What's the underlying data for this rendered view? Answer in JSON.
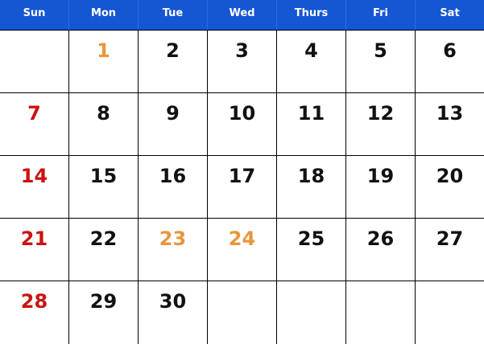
{
  "header": {
    "days": [
      "Sun",
      "Mon",
      "Tue",
      "Wed",
      "Thurs",
      "Fri",
      "Sat"
    ]
  },
  "colors": {
    "header_bg": "#1556d3",
    "sunday": "#cc1111",
    "holiday": "#e8963c",
    "default": "#111111"
  },
  "weeks": [
    [
      {
        "day": "",
        "type": "empty"
      },
      {
        "day": "1",
        "type": "holiday"
      },
      {
        "day": "2",
        "type": "default"
      },
      {
        "day": "3",
        "type": "default"
      },
      {
        "day": "4",
        "type": "default"
      },
      {
        "day": "5",
        "type": "default"
      },
      {
        "day": "6",
        "type": "default"
      }
    ],
    [
      {
        "day": "7",
        "type": "sunday"
      },
      {
        "day": "8",
        "type": "default"
      },
      {
        "day": "9",
        "type": "default"
      },
      {
        "day": "10",
        "type": "default"
      },
      {
        "day": "11",
        "type": "default"
      },
      {
        "day": "12",
        "type": "default"
      },
      {
        "day": "13",
        "type": "default"
      }
    ],
    [
      {
        "day": "14",
        "type": "sunday"
      },
      {
        "day": "15",
        "type": "default"
      },
      {
        "day": "16",
        "type": "default"
      },
      {
        "day": "17",
        "type": "default"
      },
      {
        "day": "18",
        "type": "default"
      },
      {
        "day": "19",
        "type": "default"
      },
      {
        "day": "20",
        "type": "default"
      }
    ],
    [
      {
        "day": "21",
        "type": "sunday"
      },
      {
        "day": "22",
        "type": "default"
      },
      {
        "day": "23",
        "type": "holiday"
      },
      {
        "day": "24",
        "type": "holiday"
      },
      {
        "day": "25",
        "type": "default"
      },
      {
        "day": "26",
        "type": "default"
      },
      {
        "day": "27",
        "type": "default"
      }
    ],
    [
      {
        "day": "28",
        "type": "sunday"
      },
      {
        "day": "29",
        "type": "default"
      },
      {
        "day": "30",
        "type": "default"
      },
      {
        "day": "",
        "type": "empty"
      },
      {
        "day": "",
        "type": "empty"
      },
      {
        "day": "",
        "type": "empty"
      },
      {
        "day": "",
        "type": "empty"
      }
    ]
  ]
}
